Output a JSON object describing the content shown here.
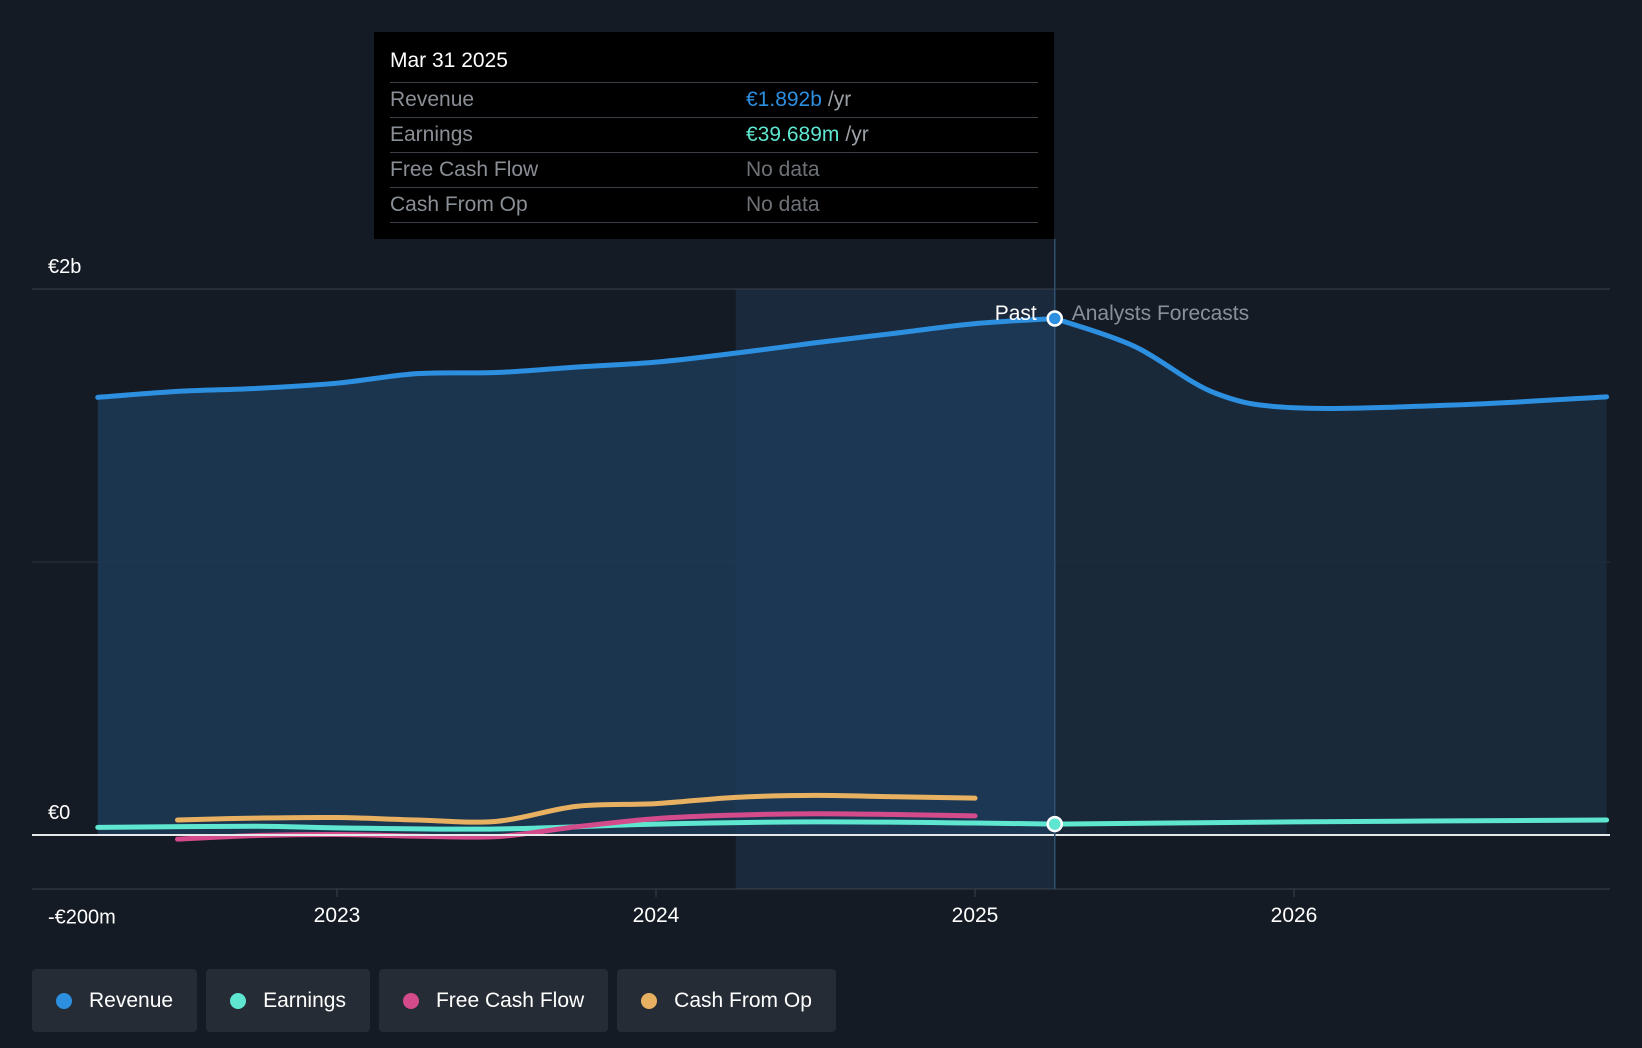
{
  "tooltip": {
    "date": "Mar 31 2025",
    "rows": [
      {
        "label": "Revenue",
        "value": "€1.892b",
        "unit": "/yr",
        "color": "#2d8fe0"
      },
      {
        "label": "Earnings",
        "value": "€39.689m",
        "unit": "/yr",
        "color": "#5ee6d0"
      },
      {
        "label": "Free Cash Flow",
        "value": "No data",
        "unit": "",
        "color": "#6e7277"
      },
      {
        "label": "Cash From Op",
        "value": "No data",
        "unit": "",
        "color": "#6e7277"
      }
    ]
  },
  "legend": [
    {
      "label": "Revenue",
      "color": "#2d8fe0"
    },
    {
      "label": "Earnings",
      "color": "#5ee6d0"
    },
    {
      "label": "Free Cash Flow",
      "color": "#d44b8c"
    },
    {
      "label": "Cash From Op",
      "color": "#e8b161"
    }
  ],
  "chart_data": {
    "type": "line",
    "title": "",
    "xlabel": "",
    "ylabel": "",
    "ylim": [
      -200,
      2000
    ],
    "xlim": [
      2022.25,
      2026.98
    ],
    "y_ticks": [
      {
        "value": 2000,
        "label": "€2b"
      },
      {
        "value": 0,
        "label": "€0"
      },
      {
        "value": -200,
        "label": "-€200m"
      }
    ],
    "x_ticks": [
      {
        "value": 2023,
        "label": "2023"
      },
      {
        "value": 2024,
        "label": "2024"
      },
      {
        "value": 2025,
        "label": "2025"
      },
      {
        "value": 2026,
        "label": "2026"
      }
    ],
    "past_label": "Past",
    "forecast_label": "Analysts Forecasts",
    "highlight_start": 2024.25,
    "split_x": 2025.25,
    "series": [
      {
        "name": "Revenue",
        "color": "#2d8fe0",
        "area": true,
        "fill": "#1d3a57",
        "x": [
          2022.25,
          2022.5,
          2022.75,
          2023.0,
          2023.25,
          2023.5,
          2023.75,
          2024.0,
          2024.25,
          2024.5,
          2024.75,
          2025.0,
          2025.25
        ],
        "y": [
          1603,
          1625,
          1636,
          1655,
          1690,
          1694,
          1714,
          1732,
          1765,
          1803,
          1838,
          1873,
          1892
        ]
      },
      {
        "name": "Revenue Forecast",
        "color": "#2d8fe0",
        "area": true,
        "fill": "#1b2c3e",
        "x": [
          2025.25,
          2025.5,
          2025.75,
          2026.0,
          2026.5,
          2026.98
        ],
        "y": [
          1892,
          1790,
          1620,
          1565,
          1575,
          1605
        ]
      },
      {
        "name": "Earnings",
        "color": "#5ee6d0",
        "area": false,
        "x": [
          2022.25,
          2022.75,
          2023.0,
          2023.5,
          2024.0,
          2024.5,
          2025.0,
          2025.25
        ],
        "y": [
          28,
          32,
          26,
          22,
          40,
          48,
          44,
          40
        ]
      },
      {
        "name": "Earnings Forecast",
        "color": "#5ee6d0",
        "area": false,
        "x": [
          2025.25,
          2026.0,
          2026.98
        ],
        "y": [
          40,
          48,
          55
        ]
      },
      {
        "name": "Free Cash Flow",
        "color": "#d44b8c",
        "area": false,
        "x": [
          2022.5,
          2022.75,
          2023.0,
          2023.25,
          2023.5,
          2023.75,
          2024.0,
          2024.25,
          2024.5,
          2024.75,
          2025.0
        ],
        "y": [
          -15,
          -2,
          2,
          -4,
          -6,
          30,
          60,
          73,
          78,
          75,
          70
        ]
      },
      {
        "name": "Cash From Op",
        "color": "#e8b161",
        "area": false,
        "x": [
          2022.5,
          2022.75,
          2023.0,
          2023.25,
          2023.5,
          2023.75,
          2024.0,
          2024.25,
          2024.5,
          2024.75,
          2025.0
        ],
        "y": [
          55,
          62,
          64,
          55,
          50,
          105,
          115,
          138,
          145,
          140,
          135
        ]
      }
    ],
    "markers": [
      {
        "series": "Revenue",
        "x": 2025.25,
        "y": 1892
      },
      {
        "series": "Earnings",
        "x": 2025.25,
        "y": 40
      }
    ]
  }
}
